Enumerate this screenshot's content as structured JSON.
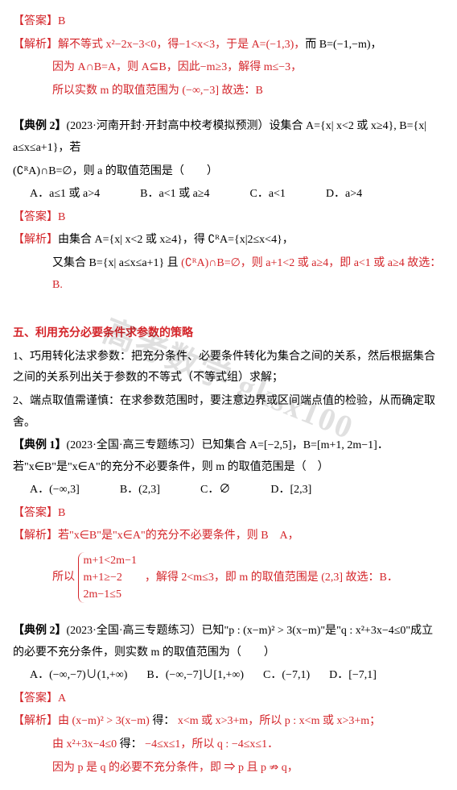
{
  "block1": {
    "answer_label": "【答案】B",
    "jiexi_label": "【解析】",
    "l1a": "解不等式 x²−2x−3<0，得−1<x<3，于是 A=(−1,3)，",
    "l1b": "而 B=(−1,−m)，",
    "l2": "因为 A∩B=A，则 A⊆B，因此−m≥3，解得 m≤−3，",
    "l3": "所以实数 m 的取值范围为 (−∞,−3]  故选：B"
  },
  "ex2": {
    "head_a": "【典例 2】",
    "head_b": "(2023·河南开封·开封高中校考模拟预测）设集合 A={x| x<2 或 x≥4}, B={x| a≤x≤a+1}，若",
    "head_c": "(∁ᴿA)∩B=∅，则 a 的取值范围是（　　）",
    "optA": "A．a≤1 或 a>4",
    "optB": "B．a<1 或 a≥4",
    "optC": "C．a<1",
    "optD": "D．a>4",
    "answer": "【答案】B",
    "jiexi_label": "【解析】",
    "s1a": "由集合 A={x| x<2 或 x≥4}，得 ∁ᴿA={x|2≤x<4}，",
    "s2a": "又集合 B={x| a≤x≤a+1} 且 (∁ᴿA)∩B=∅，则 a+1<2 或 a≥4，即 a<1 或 a≥4  故选：B."
  },
  "sec5": {
    "title": "五、利用充分必要条件求参数的策略",
    "p1": "1、巧用转化法求参数：把充分条件、必要条件转化为集合之间的关系，然后根据集合之间的关系列出关于参数的不等式（不等式组）求解；",
    "p2": "2、端点取值需谨慎：在求参数范围时，要注意边界或区间端点值的检验，从而确定取舍。"
  },
  "ex5_1": {
    "head_a": "【典例 1】",
    "head_b": "(2023·全国·高三专题练习）已知集合 A=[−2,5]，B=[m+1, 2m−1]．若\"x∈B\"是\"x∈A\"的充分不必要条件，则 m 的取值范围是（　）",
    "optA": "A．(−∞,3]",
    "optB": "B．(2,3]",
    "optC": "C．∅",
    "optD": "D．[2,3]",
    "answer": "【答案】B",
    "jiexi_label": "【解析】",
    "s1": "若\"x∈B\"是\"x∈A\"的充分不必要条件，则 B　A，",
    "brace1": "m+1<2m−1",
    "brace2": "m+1≥−2　　，解得 2<m≤3，即 m 的取值范围是 (2,3]  故选：B．",
    "brace3": "2m−1≤5",
    "so": "所以"
  },
  "ex5_2": {
    "head_a": "【典例 2】",
    "head_b": "(2023·全国·高三专题练习）已知\"p : (x−m)² > 3(x−m)\"是\"q : x²+3x−4≤0\"成立的必要不充分条件，则实数 m 的取值范围为（　　）",
    "optA": "A．(−∞,−7)∪(1,+∞)",
    "optB": "B．(−∞,−7]∪[1,+∞)",
    "optC": "C．(−7,1)",
    "optD": "D．[−7,1]",
    "answer": "【答案】A",
    "jiexi_label": "【解析】",
    "s1a": "由 (x−m)² > 3(x−m) ",
    "s1b": "得：",
    "s1c": " x<m 或 x>3+m，所以 p : x<m 或 x>3+m；",
    "s2a": "由 x²+3x−4≤0 ",
    "s2b": "得：",
    "s2c": " −4≤x≤1，所以 q : −4≤x≤1．",
    "s3": "因为 p 是 q 的必要不充分条件，即 ⇒ p 且 p ⇏ q，"
  },
  "colors": {
    "red": "#d4252a",
    "black": "#000000",
    "bg": "#ffffff"
  },
  "watermark": "高考数学 gksx100"
}
